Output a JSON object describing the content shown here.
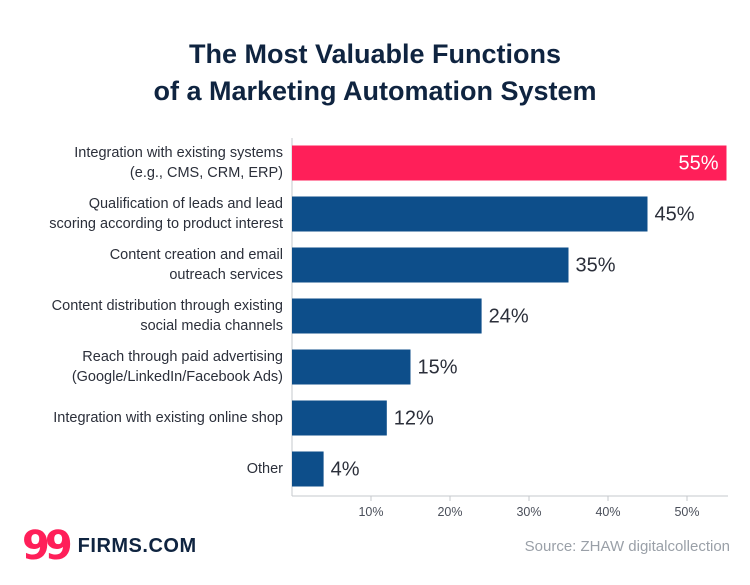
{
  "title_line1": "The Most Valuable Functions",
  "title_line2": "of a Marketing Automation System",
  "logo": {
    "mark": "99",
    "text": "FIRMS.COM"
  },
  "source": "Source: ZHAW digitalcollection",
  "colors": {
    "highlight": "#ff1f59",
    "bar": "#0d4e8a",
    "axis": "#c5c8cc",
    "title": "#0f2440"
  },
  "chart_data": {
    "type": "bar",
    "orientation": "horizontal",
    "title": "The Most Valuable Functions of a Marketing Automation System",
    "categories": [
      [
        "Integration with existing systems",
        "(e.g., CMS, CRM, ERP)"
      ],
      [
        "Qualification of leads and lead",
        "scoring according to product interest"
      ],
      [
        "Content creation and email",
        "outreach services"
      ],
      [
        "Content distribution through existing",
        "social media channels"
      ],
      [
        "Reach through paid advertising",
        "(Google/LinkedIn/Facebook Ads)"
      ],
      [
        "Integration with existing online shop"
      ],
      [
        "Other"
      ]
    ],
    "values": [
      55,
      45,
      35,
      24,
      15,
      12,
      4
    ],
    "value_labels": [
      "55%",
      "45%",
      "35%",
      "24%",
      "15%",
      "12%",
      "4%"
    ],
    "highlight_index": 0,
    "xlim": [
      0,
      55
    ],
    "xticks": [
      10,
      20,
      30,
      40,
      50
    ],
    "xtick_labels": [
      "10%",
      "20%",
      "30%",
      "40%",
      "50%"
    ],
    "xlabel": "",
    "ylabel": ""
  }
}
